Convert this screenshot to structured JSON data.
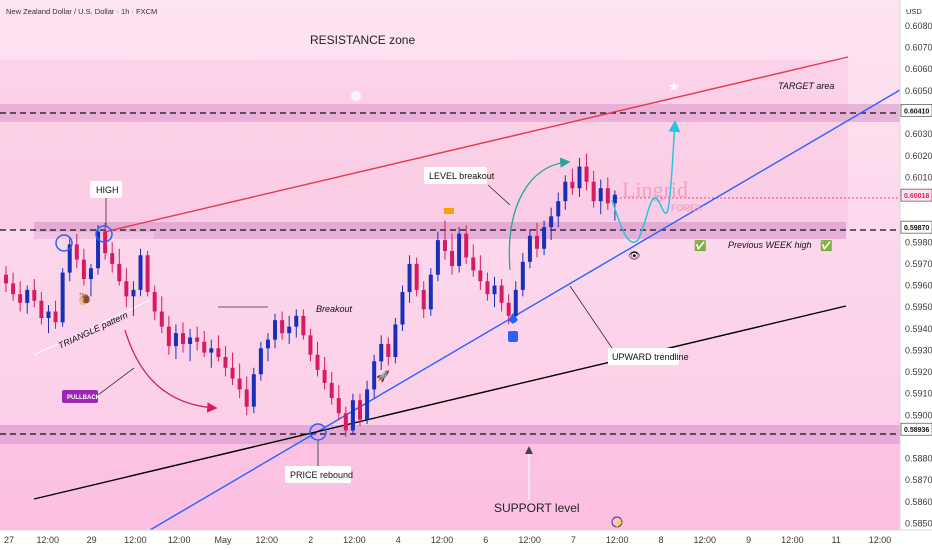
{
  "header": {
    "title": "New Zealand Dollar / U.S. Dollar · 1h · FXCM",
    "currency": "USD"
  },
  "watermark": {
    "line1": "Lingrid",
    "line2": "FOREX"
  },
  "chart_data": {
    "type": "candlestick",
    "ylim": [
      0.5847,
      0.6092
    ],
    "x_ticks": [
      "27",
      "12:00",
      "29",
      "12:00",
      "12:00",
      "May",
      "12:00",
      "2",
      "12:00",
      "4",
      "12:00",
      "6",
      "12:00",
      "7",
      "12:00",
      "8",
      "12:00",
      "9",
      "12:00",
      "11",
      "12:00"
    ],
    "y_ticks": [
      "0.60800",
      "0.60700",
      "0.60600",
      "0.60500",
      "0.60300",
      "0.60200",
      "0.60100",
      "0.59800",
      "0.59700",
      "0.59600",
      "0.59500",
      "0.59400",
      "0.59300",
      "0.59200",
      "0.59100",
      "0.59000",
      "0.58800",
      "0.58700",
      "0.58600",
      "0.58500"
    ],
    "price_labels": [
      {
        "text": "0.60410",
        "value": 0.6041,
        "color": "#ffffff",
        "text_color": "#111111"
      },
      {
        "text": "0.60018",
        "value": 0.60018,
        "color": "#ffe3f2",
        "text_color": "#e0245e"
      },
      {
        "text": "0.59870",
        "value": 0.5987,
        "color": "#ffffff",
        "text_color": "#111111"
      },
      {
        "text": "0.58936",
        "value": 0.58936,
        "color": "#ffffff",
        "text_color": "#111111"
      }
    ],
    "annotations": {
      "resistance": "RESISTANCE zone",
      "target": "TARGET area",
      "high": "HIGH",
      "triangle": "TRIANGLE pattern",
      "pullback": "PULLBACK",
      "breakout": "Breakout",
      "level_breakout": "LEVEL breakout",
      "prev_week": "Previous WEEK high",
      "upward": "UPWARD trendline",
      "price_rebound": "PRICE rebound",
      "support": "SUPPORT level"
    },
    "colors": {
      "up": "#1a2fb8",
      "down": "#d81b60",
      "resistance_line": "#e53950",
      "upward_trend": "#2962ff",
      "support_trend": "#000000",
      "projection": "#26c6da"
    },
    "candles": [
      [
        0.5965,
        0.5969,
        0.5957,
        0.5961
      ],
      [
        0.5961,
        0.5966,
        0.5953,
        0.5956
      ],
      [
        0.5956,
        0.5962,
        0.5948,
        0.5952
      ],
      [
        0.5952,
        0.596,
        0.5947,
        0.5958
      ],
      [
        0.5958,
        0.5963,
        0.595,
        0.5953
      ],
      [
        0.5953,
        0.5957,
        0.5942,
        0.5945
      ],
      [
        0.5945,
        0.5951,
        0.5938,
        0.5948
      ],
      [
        0.5948,
        0.5953,
        0.594,
        0.5943
      ],
      [
        0.5943,
        0.5968,
        0.5941,
        0.5966
      ],
      [
        0.5966,
        0.5982,
        0.5962,
        0.5979
      ],
      [
        0.5979,
        0.5984,
        0.5968,
        0.5972
      ],
      [
        0.5972,
        0.5977,
        0.596,
        0.5963
      ],
      [
        0.5963,
        0.597,
        0.5955,
        0.5968
      ],
      [
        0.5968,
        0.5988,
        0.5965,
        0.5985
      ],
      [
        0.5985,
        0.5989,
        0.5972,
        0.5975
      ],
      [
        0.5975,
        0.598,
        0.5966,
        0.597
      ],
      [
        0.597,
        0.5977,
        0.596,
        0.5962
      ],
      [
        0.5962,
        0.5968,
        0.595,
        0.5955
      ],
      [
        0.5955,
        0.5962,
        0.5946,
        0.5958
      ],
      [
        0.5958,
        0.5977,
        0.5955,
        0.5974
      ],
      [
        0.5974,
        0.5976,
        0.5955,
        0.5957
      ],
      [
        0.5957,
        0.596,
        0.5944,
        0.5948
      ],
      [
        0.5948,
        0.5955,
        0.5938,
        0.5941
      ],
      [
        0.5941,
        0.5946,
        0.5928,
        0.5932
      ],
      [
        0.5932,
        0.5942,
        0.5926,
        0.5938
      ],
      [
        0.5938,
        0.5943,
        0.5929,
        0.5933
      ],
      [
        0.5933,
        0.594,
        0.5925,
        0.5936
      ],
      [
        0.5936,
        0.5941,
        0.593,
        0.5934
      ],
      [
        0.5934,
        0.5939,
        0.5927,
        0.5929
      ],
      [
        0.5929,
        0.5935,
        0.5922,
        0.5931
      ],
      [
        0.5931,
        0.5937,
        0.5925,
        0.5927
      ],
      [
        0.5927,
        0.5932,
        0.5918,
        0.5922
      ],
      [
        0.5922,
        0.5929,
        0.5914,
        0.5917
      ],
      [
        0.5917,
        0.5924,
        0.5908,
        0.5912
      ],
      [
        0.5912,
        0.5918,
        0.59,
        0.5904
      ],
      [
        0.5904,
        0.5922,
        0.5901,
        0.5919
      ],
      [
        0.5919,
        0.5934,
        0.5916,
        0.5931
      ],
      [
        0.5931,
        0.5938,
        0.5925,
        0.5935
      ],
      [
        0.5935,
        0.5947,
        0.5931,
        0.5944
      ],
      [
        0.5944,
        0.5948,
        0.5935,
        0.5938
      ],
      [
        0.5938,
        0.5946,
        0.5933,
        0.5941
      ],
      [
        0.5941,
        0.5949,
        0.5936,
        0.5946
      ],
      [
        0.5946,
        0.5949,
        0.5935,
        0.5937
      ],
      [
        0.5937,
        0.594,
        0.5925,
        0.5928
      ],
      [
        0.5928,
        0.5934,
        0.5918,
        0.5921
      ],
      [
        0.5921,
        0.5927,
        0.5912,
        0.5915
      ],
      [
        0.5915,
        0.592,
        0.5905,
        0.5908
      ],
      [
        0.5908,
        0.5914,
        0.5898,
        0.5901
      ],
      [
        0.5901,
        0.5904,
        0.589,
        0.5893
      ],
      [
        0.5893,
        0.591,
        0.5891,
        0.5907
      ],
      [
        0.5907,
        0.591,
        0.5895,
        0.5898
      ],
      [
        0.5898,
        0.5916,
        0.5896,
        0.5912
      ],
      [
        0.5912,
        0.5928,
        0.5908,
        0.5925
      ],
      [
        0.5925,
        0.5937,
        0.5921,
        0.5933
      ],
      [
        0.5933,
        0.5936,
        0.5923,
        0.5927
      ],
      [
        0.5927,
        0.5945,
        0.5924,
        0.5942
      ],
      [
        0.5942,
        0.596,
        0.5939,
        0.5957
      ],
      [
        0.5957,
        0.5974,
        0.5952,
        0.597
      ],
      [
        0.597,
        0.5973,
        0.5955,
        0.5958
      ],
      [
        0.5958,
        0.5962,
        0.5945,
        0.5949
      ],
      [
        0.5949,
        0.5968,
        0.5946,
        0.5965
      ],
      [
        0.5965,
        0.5985,
        0.5962,
        0.5981
      ],
      [
        0.5981,
        0.599,
        0.5972,
        0.5976
      ],
      [
        0.5976,
        0.5984,
        0.5965,
        0.5969
      ],
      [
        0.5969,
        0.5987,
        0.5966,
        0.5984
      ],
      [
        0.5984,
        0.5988,
        0.597,
        0.5973
      ],
      [
        0.5973,
        0.5979,
        0.5964,
        0.5967
      ],
      [
        0.5967,
        0.5974,
        0.5958,
        0.5962
      ],
      [
        0.5962,
        0.5966,
        0.5953,
        0.5956
      ],
      [
        0.5956,
        0.5964,
        0.595,
        0.596
      ],
      [
        0.596,
        0.5963,
        0.5948,
        0.5952
      ],
      [
        0.5952,
        0.5956,
        0.5942,
        0.5946
      ],
      [
        0.5946,
        0.5962,
        0.5943,
        0.5958
      ],
      [
        0.5958,
        0.5975,
        0.5955,
        0.5971
      ],
      [
        0.5971,
        0.5986,
        0.5968,
        0.5983
      ],
      [
        0.5983,
        0.5989,
        0.5973,
        0.5977
      ],
      [
        0.5977,
        0.599,
        0.5974,
        0.5987
      ],
      [
        0.5987,
        0.5996,
        0.5981,
        0.5992
      ],
      [
        0.5992,
        0.6003,
        0.5987,
        0.5999
      ],
      [
        0.5999,
        0.6011,
        0.5995,
        0.6008
      ],
      [
        0.6008,
        0.6014,
        0.6002,
        0.6005
      ],
      [
        0.6005,
        0.6019,
        0.6001,
        0.6015
      ],
      [
        0.6015,
        0.6021,
        0.6004,
        0.6008
      ],
      [
        0.6008,
        0.6013,
        0.5996,
        0.5999
      ],
      [
        0.5999,
        0.6009,
        0.5993,
        0.6005
      ],
      [
        0.6005,
        0.601,
        0.5995,
        0.5998
      ],
      [
        0.5998,
        0.6004,
        0.599,
        0.6002
      ]
    ]
  }
}
